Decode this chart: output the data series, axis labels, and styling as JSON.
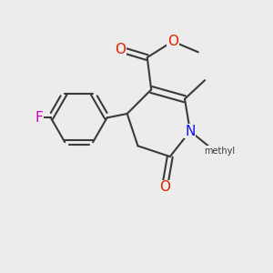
{
  "bg_color": "#ececec",
  "bond_color": "#3a3a3a",
  "bond_width": 1.5,
  "atom_colors": {
    "O": "#e02000",
    "N": "#1010ee",
    "F": "#cc00bb",
    "C": "#3a3a3a"
  },
  "font_size_atom": 11,
  "font_size_small": 9.5
}
